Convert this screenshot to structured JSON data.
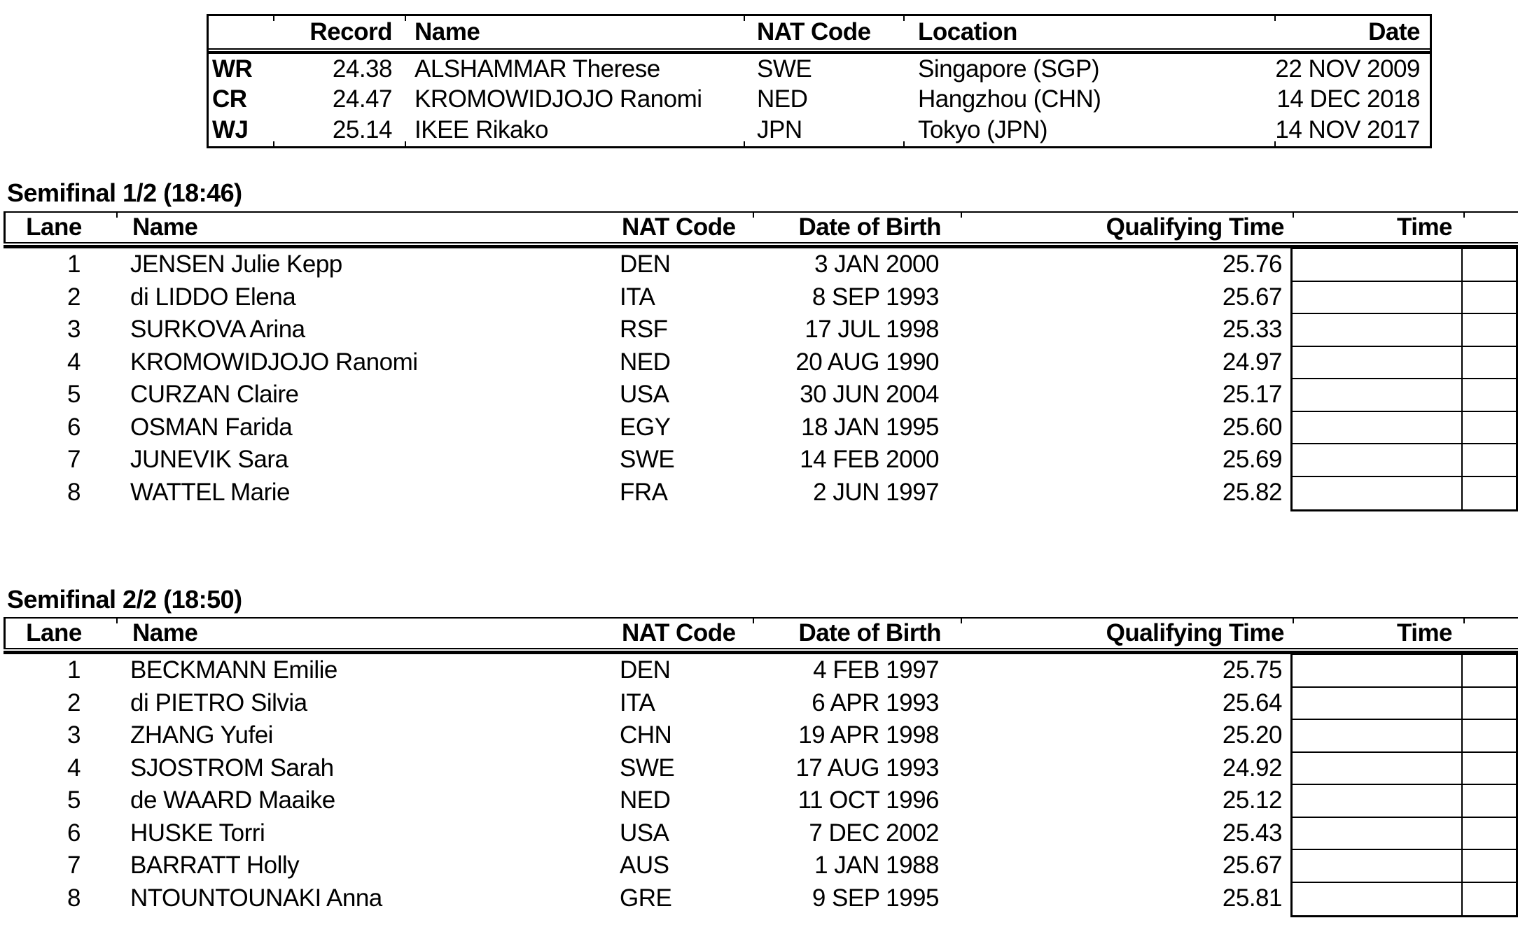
{
  "records_table": {
    "headers": {
      "record": "Record",
      "name": "Name",
      "nat_code": "NAT Code",
      "location": "Location",
      "date": "Date"
    },
    "rows": [
      {
        "type": "WR",
        "time": "24.38",
        "name": "ALSHAMMAR Therese",
        "nat": "SWE",
        "location": "Singapore (SGP)",
        "date": "22 NOV 2009"
      },
      {
        "type": "CR",
        "time": "24.47",
        "name": "KROMOWIDJOJO Ranomi",
        "nat": "NED",
        "location": "Hangzhou (CHN)",
        "date": "14 DEC 2018"
      },
      {
        "type": "WJ",
        "time": "25.14",
        "name": "IKEE Rikako",
        "nat": "JPN",
        "location": "Tokyo (JPN)",
        "date": "14 NOV 2017"
      }
    ]
  },
  "heat_headers": {
    "lane": "Lane",
    "name": "Name",
    "nat_code": "NAT Code",
    "date_of_birth": "Date of Birth",
    "qualifying_time": "Qualifying Time",
    "time": "Time"
  },
  "semifinals": [
    {
      "title": "Semifinal 1/2 (18:46)",
      "swimmers": [
        {
          "lane": "1",
          "name": "JENSEN Julie Kepp",
          "nat": "DEN",
          "dob": "3 JAN 2000",
          "qt": "25.76",
          "time": ""
        },
        {
          "lane": "2",
          "name": "di LIDDO Elena",
          "nat": "ITA",
          "dob": "8 SEP 1993",
          "qt": "25.67",
          "time": ""
        },
        {
          "lane": "3",
          "name": "SURKOVA Arina",
          "nat": "RSF",
          "dob": "17 JUL 1998",
          "qt": "25.33",
          "time": ""
        },
        {
          "lane": "4",
          "name": "KROMOWIDJOJO Ranomi",
          "nat": "NED",
          "dob": "20 AUG 1990",
          "qt": "24.97",
          "time": ""
        },
        {
          "lane": "5",
          "name": "CURZAN Claire",
          "nat": "USA",
          "dob": "30 JUN 2004",
          "qt": "25.17",
          "time": ""
        },
        {
          "lane": "6",
          "name": "OSMAN Farida",
          "nat": "EGY",
          "dob": "18 JAN 1995",
          "qt": "25.60",
          "time": ""
        },
        {
          "lane": "7",
          "name": "JUNEVIK Sara",
          "nat": "SWE",
          "dob": "14 FEB 2000",
          "qt": "25.69",
          "time": ""
        },
        {
          "lane": "8",
          "name": "WATTEL Marie",
          "nat": "FRA",
          "dob": "2 JUN 1997",
          "qt": "25.82",
          "time": ""
        }
      ]
    },
    {
      "title": "Semifinal 2/2 (18:50)",
      "swimmers": [
        {
          "lane": "1",
          "name": "BECKMANN Emilie",
          "nat": "DEN",
          "dob": "4 FEB 1997",
          "qt": "25.75",
          "time": ""
        },
        {
          "lane": "2",
          "name": "di PIETRO Silvia",
          "nat": "ITA",
          "dob": "6 APR 1993",
          "qt": "25.64",
          "time": ""
        },
        {
          "lane": "3",
          "name": "ZHANG Yufei",
          "nat": "CHN",
          "dob": "19 APR 1998",
          "qt": "25.20",
          "time": ""
        },
        {
          "lane": "4",
          "name": "SJOSTROM Sarah",
          "nat": "SWE",
          "dob": "17 AUG 1993",
          "qt": "24.92",
          "time": ""
        },
        {
          "lane": "5",
          "name": "de WAARD Maaike",
          "nat": "NED",
          "dob": "11 OCT 1996",
          "qt": "25.12",
          "time": ""
        },
        {
          "lane": "6",
          "name": "HUSKE Torri",
          "nat": "USA",
          "dob": "7 DEC 2002",
          "qt": "25.43",
          "time": ""
        },
        {
          "lane": "7",
          "name": "BARRATT Holly",
          "nat": "AUS",
          "dob": "1 JAN 1988",
          "qt": "25.67",
          "time": ""
        },
        {
          "lane": "8",
          "name": "NTOUNTOUNAKI Anna",
          "nat": "GRE",
          "dob": "9 SEP 1995",
          "qt": "25.81",
          "time": ""
        }
      ]
    }
  ],
  "colors": {
    "text": "#000000",
    "border": "#000000",
    "background": "#ffffff"
  }
}
